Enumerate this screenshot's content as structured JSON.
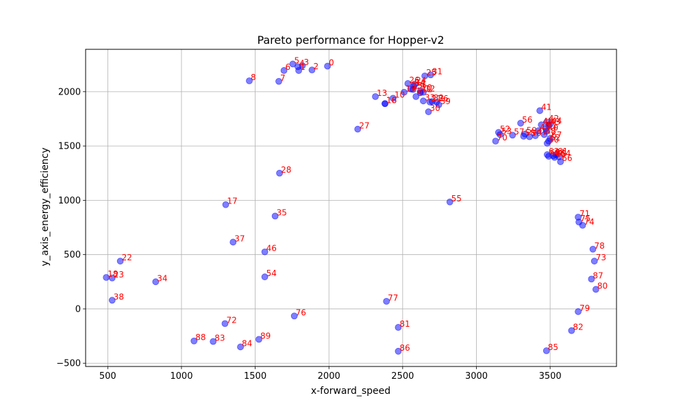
{
  "chart_data": {
    "type": "scatter",
    "title": "Pareto performance for Hopper-v2",
    "xlabel": "x-forward_speed",
    "ylabel": "y_axis_energy_efficiency",
    "xlim": [
      350,
      3950
    ],
    "ylim": [
      -530,
      2390
    ],
    "xticks": [
      500,
      1000,
      1500,
      2000,
      2500,
      3000,
      3500
    ],
    "yticks": [
      -500,
      0,
      500,
      1000,
      1500,
      2000
    ],
    "grid": true,
    "point_color": "#0000ff",
    "label_color": "#ff0000",
    "points": [
      {
        "label": "0",
        "x": 1990,
        "y": 2235
      },
      {
        "label": "1",
        "x": 1795,
        "y": 2195
      },
      {
        "label": "2",
        "x": 1885,
        "y": 2200
      },
      {
        "label": "3",
        "x": 1820,
        "y": 2240
      },
      {
        "label": "4",
        "x": 1790,
        "y": 2230
      },
      {
        "label": "5",
        "x": 1755,
        "y": 2255
      },
      {
        "label": "6",
        "x": 1695,
        "y": 2195
      },
      {
        "label": "7",
        "x": 1660,
        "y": 2095
      },
      {
        "label": "8",
        "x": 1460,
        "y": 2100
      },
      {
        "label": "9",
        "x": 2590,
        "y": 1955
      },
      {
        "label": "10",
        "x": 2435,
        "y": 1940
      },
      {
        "label": "11",
        "x": 2620,
        "y": 1990
      },
      {
        "label": "12",
        "x": 2640,
        "y": 1995
      },
      {
        "label": "13",
        "x": 2315,
        "y": 1955
      },
      {
        "label": "14",
        "x": 2575,
        "y": 2050
      },
      {
        "label": "15",
        "x": 2555,
        "y": 2025
      },
      {
        "label": "16",
        "x": 2380,
        "y": 1890
      },
      {
        "label": "17",
        "x": 1300,
        "y": 960
      },
      {
        "label": "18",
        "x": 2380,
        "y": 1890
      },
      {
        "label": "19",
        "x": 2510,
        "y": 1995
      },
      {
        "label": "20",
        "x": 2620,
        "y": 2005
      },
      {
        "label": "21",
        "x": 2685,
        "y": 1905
      },
      {
        "label": "22",
        "x": 585,
        "y": 440
      },
      {
        "label": "23",
        "x": 530,
        "y": 285
      },
      {
        "label": "24",
        "x": 2580,
        "y": 2070
      },
      {
        "label": "25",
        "x": 2650,
        "y": 2145
      },
      {
        "label": "26",
        "x": 2535,
        "y": 2075
      },
      {
        "label": "27",
        "x": 2195,
        "y": 1655
      },
      {
        "label": "28",
        "x": 1665,
        "y": 1250
      },
      {
        "label": "29",
        "x": 2570,
        "y": 2020
      },
      {
        "label": "30",
        "x": 2675,
        "y": 1815
      },
      {
        "label": "31",
        "x": 2690,
        "y": 2155
      },
      {
        "label": "32",
        "x": 2700,
        "y": 1910
      },
      {
        "label": "33",
        "x": 2640,
        "y": 1915
      },
      {
        "label": "34",
        "x": 825,
        "y": 250
      },
      {
        "label": "35",
        "x": 1635,
        "y": 855
      },
      {
        "label": "36",
        "x": 2730,
        "y": 1905
      },
      {
        "label": "37",
        "x": 1350,
        "y": 615
      },
      {
        "label": "38",
        "x": 530,
        "y": 80
      },
      {
        "label": "39",
        "x": 2745,
        "y": 1880
      },
      {
        "label": "40",
        "x": 3475,
        "y": 1635
      },
      {
        "label": "41",
        "x": 3430,
        "y": 1825
      },
      {
        "label": "42",
        "x": 3480,
        "y": 1720
      },
      {
        "label": "43",
        "x": 3490,
        "y": 1690
      },
      {
        "label": "44",
        "x": 3500,
        "y": 1700
      },
      {
        "label": "45",
        "x": 3440,
        "y": 1695
      },
      {
        "label": "46",
        "x": 1565,
        "y": 525
      },
      {
        "label": "47",
        "x": 3400,
        "y": 1595
      },
      {
        "label": "48",
        "x": 3460,
        "y": 1605
      },
      {
        "label": "49",
        "x": 3420,
        "y": 1640
      },
      {
        "label": "50",
        "x": 3360,
        "y": 1585
      },
      {
        "label": "51",
        "x": 3470,
        "y": 1660
      },
      {
        "label": "52",
        "x": 3150,
        "y": 1625
      },
      {
        "label": "53",
        "x": 3160,
        "y": 1605
      },
      {
        "label": "54",
        "x": 1565,
        "y": 295
      },
      {
        "label": "55",
        "x": 2820,
        "y": 985
      },
      {
        "label": "56",
        "x": 3300,
        "y": 1710
      },
      {
        "label": "57",
        "x": 3245,
        "y": 1600
      },
      {
        "label": "58",
        "x": 3320,
        "y": 1590
      },
      {
        "label": "59",
        "x": 3330,
        "y": 1610
      },
      {
        "label": "60",
        "x": 3480,
        "y": 1525
      },
      {
        "label": "61",
        "x": 3540,
        "y": 1420
      },
      {
        "label": "62",
        "x": 3490,
        "y": 1545
      },
      {
        "label": "63",
        "x": 3480,
        "y": 1420
      },
      {
        "label": "64",
        "x": 3560,
        "y": 1400
      },
      {
        "label": "65",
        "x": 3530,
        "y": 1395
      },
      {
        "label": "66",
        "x": 3570,
        "y": 1355
      },
      {
        "label": "67",
        "x": 3500,
        "y": 1570
      },
      {
        "label": "68",
        "x": 3520,
        "y": 1410
      },
      {
        "label": "69",
        "x": 3490,
        "y": 1405
      },
      {
        "label": "70",
        "x": 3130,
        "y": 1545
      },
      {
        "label": "71",
        "x": 3690,
        "y": 845
      },
      {
        "label": "72",
        "x": 1295,
        "y": -135
      },
      {
        "label": "73",
        "x": 3800,
        "y": 440
      },
      {
        "label": "74",
        "x": 3720,
        "y": 770
      },
      {
        "label": "75",
        "x": 3695,
        "y": 800
      },
      {
        "label": "76",
        "x": 1765,
        "y": -65
      },
      {
        "label": "77",
        "x": 2390,
        "y": 70
      },
      {
        "label": "78",
        "x": 3790,
        "y": 550
      },
      {
        "label": "79",
        "x": 3690,
        "y": -25
      },
      {
        "label": "80",
        "x": 3810,
        "y": 180
      },
      {
        "label": "81",
        "x": 2470,
        "y": -170
      },
      {
        "label": "82",
        "x": 3645,
        "y": -200
      },
      {
        "label": "83",
        "x": 1215,
        "y": -300
      },
      {
        "label": "84",
        "x": 1400,
        "y": -350
      },
      {
        "label": "85",
        "x": 3475,
        "y": -385
      },
      {
        "label": "86",
        "x": 2470,
        "y": -390
      },
      {
        "label": "87",
        "x": 3780,
        "y": 275
      },
      {
        "label": "88",
        "x": 1085,
        "y": -295
      },
      {
        "label": "89",
        "x": 1525,
        "y": -280
      },
      {
        "label": "18b",
        "x": 490,
        "y": 290
      }
    ]
  }
}
